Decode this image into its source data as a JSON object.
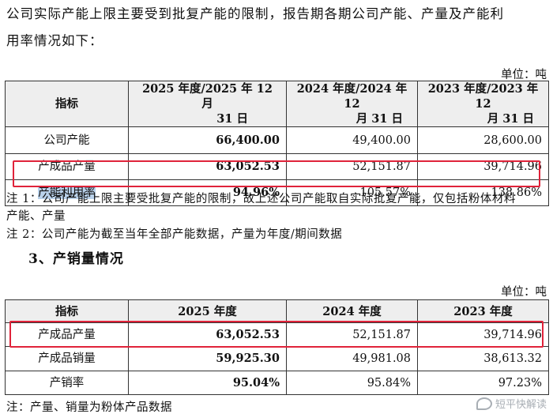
{
  "intro": {
    "line1": "公司实际产能上限主要受到批复产能的限制，报告期各期公司产能、产量及产能利",
    "line2": "用率情况如下："
  },
  "table1": {
    "unit": "单位：吨",
    "headers": {
      "indicator": "指标",
      "col1_line1": "2025 年度/2025 年 12 月",
      "col1_line2": "31 日",
      "col2_line1": "2024 年度/2024 年 12",
      "col2_line2": "月 31 日",
      "col3_line1": "2023 年度/2023 年 12",
      "col3_line2": "月 31 日"
    },
    "rows": [
      {
        "label": "公司产能",
        "v2025": "66,400.00",
        "v2024": "49,400.00",
        "v2023": "28,600.00"
      },
      {
        "label": "产成品产量",
        "v2025": "63,052.53",
        "v2024": "52,151.87",
        "v2023": "39,714.96"
      },
      {
        "label": "产能利用率",
        "v2025": "94.96%",
        "v2024": "105.57%",
        "v2023": "138.86%"
      }
    ]
  },
  "notes1": {
    "note1_line1": "注 1：公司产能上限主要受批复产能的限制，故上述公司产能取自实际批复产能，仅包括粉体材料",
    "note1_line2": "产能、产量",
    "note2": "注 2：公司产能为截至当年全部产能数据，产量为年度/期间数据"
  },
  "section_heading": "3、产销量情况",
  "table2": {
    "unit": "单位：吨",
    "headers": {
      "indicator": "指标",
      "col1": "2025 年度",
      "col2": "2024 年度",
      "col3": "2023 年度"
    },
    "rows": [
      {
        "label": "产成品产量",
        "v2025": "63,052.53",
        "v2024": "52,151.87",
        "v2023": "39,714.96"
      },
      {
        "label": "产成品销量",
        "v2025": "59,925.30",
        "v2024": "49,981.08",
        "v2023": "38,613.32"
      },
      {
        "label": "产销率",
        "v2025": "95.04%",
        "v2024": "95.84%",
        "v2023": "97.23%"
      }
    ]
  },
  "note_bottom": "注：产量、销量为粉体产品数据",
  "watermark": "短平快解读",
  "colors": {
    "highlight_border": "#e0233a",
    "selection": "#b9d1ea",
    "header_bg": "#eeeeee"
  }
}
